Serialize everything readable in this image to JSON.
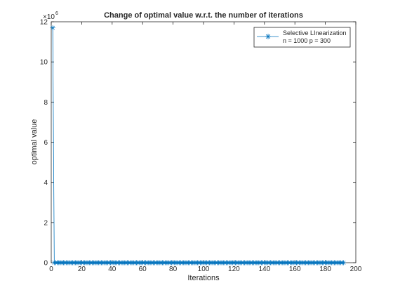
{
  "chart_data": {
    "type": "line",
    "title": "Change of optimal value w.r.t. the number of iterations",
    "xlabel": "Iterations",
    "ylabel": "optimal value",
    "y_exponent_label": "×10",
    "y_exponent_power": "6",
    "xlim": [
      0,
      200
    ],
    "ylim": [
      0,
      12000000
    ],
    "y_scale": 1000000,
    "grid": false,
    "legend_position": "top-right",
    "x_ticks": [
      0,
      20,
      40,
      60,
      80,
      100,
      120,
      140,
      160,
      180,
      200
    ],
    "y_ticks": [
      0,
      2000000,
      4000000,
      6000000,
      8000000,
      10000000,
      12000000
    ],
    "x_tick_labels": [
      "0",
      "20",
      "40",
      "60",
      "80",
      "100",
      "120",
      "140",
      "160",
      "180",
      "200"
    ],
    "y_tick_labels": [
      "0",
      "2",
      "4",
      "6",
      "8",
      "10",
      "12"
    ],
    "series": [
      {
        "name": "Selective LInearization",
        "name_line2": "n = 1000 p = 300",
        "color": "#0072bd",
        "marker": "asterisk",
        "x_start": 1,
        "x_step": 1,
        "values": [
          11700000,
          3000,
          2000,
          1500,
          1200,
          1000,
          900,
          800,
          700,
          650,
          600,
          550,
          500,
          480,
          460,
          440,
          420,
          400,
          390,
          380,
          370,
          360,
          350,
          340,
          330,
          320,
          310,
          300,
          295,
          290,
          285,
          280,
          275,
          270,
          265,
          260,
          255,
          250,
          245,
          240,
          236,
          232,
          228,
          224,
          220,
          216,
          212,
          208,
          204,
          200,
          197,
          194,
          191,
          188,
          185,
          182,
          179,
          176,
          173,
          170,
          168,
          166,
          164,
          162,
          160,
          158,
          156,
          154,
          152,
          150,
          148,
          146,
          144,
          142,
          140,
          138,
          136,
          134,
          132,
          130,
          129,
          128,
          127,
          126,
          125,
          124,
          123,
          122,
          121,
          120,
          119,
          118,
          117,
          116,
          115,
          114,
          113,
          112,
          111,
          110,
          109,
          108,
          107,
          106,
          105,
          104,
          103,
          102,
          101,
          100,
          99,
          98,
          97,
          96,
          95,
          94,
          93,
          92,
          91,
          90,
          89,
          88,
          87,
          86,
          85,
          84,
          83,
          82,
          81,
          80,
          79,
          78,
          77,
          76,
          75,
          74,
          73,
          72,
          71,
          70,
          69,
          68,
          67,
          66,
          65,
          64,
          63,
          62,
          61,
          60,
          59,
          58,
          57,
          56,
          55,
          54,
          53,
          52,
          51,
          50,
          49,
          48,
          47,
          46,
          45,
          44,
          43,
          42,
          41,
          40,
          39,
          38,
          37,
          36,
          35,
          34,
          33,
          32,
          31,
          30,
          29,
          28,
          27,
          26,
          25,
          24,
          23,
          22,
          21,
          20,
          19,
          18
        ]
      }
    ]
  }
}
